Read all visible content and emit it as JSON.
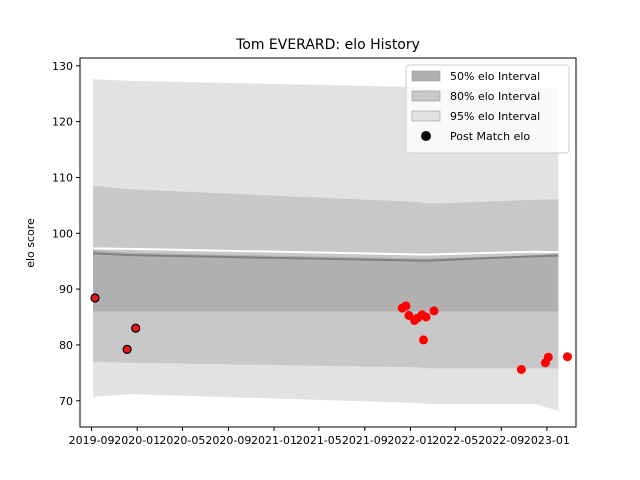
{
  "chart_data": {
    "type": "area",
    "title": "Tom EVERARD: elo History",
    "xlabel": "",
    "ylabel": "elo score",
    "xlim": [
      "2019-08-01",
      "2023-03-20"
    ],
    "ylim": [
      65.3,
      131.4
    ],
    "yticks": [
      70,
      80,
      90,
      100,
      110,
      120,
      130
    ],
    "xticks": [
      "2019-09",
      "2020-01",
      "2020-05",
      "2020-09",
      "2021-01",
      "2021-05",
      "2021-09",
      "2022-01",
      "2022-05",
      "2022-09",
      "2023-01"
    ],
    "grid": false,
    "legend": {
      "position": "top-right",
      "entries": [
        {
          "label": "50% elo Interval",
          "kind": "patch",
          "color": "#b0b0b0"
        },
        {
          "label": "80% elo Interval",
          "kind": "patch",
          "color": "#c8c8c8"
        },
        {
          "label": "95% elo Interval",
          "kind": "patch",
          "color": "#e2e2e2"
        },
        {
          "label": "Post Match elo",
          "kind": "marker",
          "color": "#000000"
        }
      ]
    },
    "colors": {
      "band_50": "#b0b0b0",
      "band_80": "#c8c8c8",
      "band_95": "#e2e2e2",
      "mean_line": "#808080",
      "upper_line": "#ffffff",
      "point_early": "#e8191a",
      "point_late": "#ff0000"
    },
    "bands": {
      "x": [
        "2019-09-05",
        "2019-12-15",
        "2022-01-20",
        "2022-02-20",
        "2022-12-01",
        "2023-02-01"
      ],
      "mean": [
        96.4,
        96.1,
        95.1,
        95.1,
        95.9,
        96.0
      ],
      "p50_low": [
        86.0,
        86.0,
        86.0,
        86.0,
        86.0,
        86.0
      ],
      "p50_high": [
        97.0,
        96.5,
        95.5,
        95.5,
        96.0,
        96.5
      ],
      "p80_low": [
        77.0,
        76.8,
        76.0,
        75.8,
        75.8,
        75.8
      ],
      "p80_high": [
        108.5,
        107.9,
        105.6,
        105.3,
        106.0,
        106.1
      ],
      "p95_low": [
        70.7,
        71.2,
        69.6,
        69.4,
        69.4,
        68.2
      ],
      "p95_high": [
        127.6,
        127.3,
        126.2,
        125.9,
        126.0,
        126.0
      ]
    },
    "upper_line": {
      "x": [
        "2019-09-05",
        "2019-12-15",
        "2022-01-20",
        "2022-02-20",
        "2022-12-01",
        "2023-02-01"
      ],
      "y": [
        97.3,
        97.2,
        96.2,
        96.2,
        96.7,
        96.6
      ]
    },
    "points": [
      {
        "date": "2019-09-10",
        "elo": 88.4,
        "group": "early"
      },
      {
        "date": "2019-12-05",
        "elo": 79.2,
        "group": "early"
      },
      {
        "date": "2019-12-28",
        "elo": 83.0,
        "group": "early"
      },
      {
        "date": "2021-12-10",
        "elo": 86.6,
        "group": "late"
      },
      {
        "date": "2021-12-20",
        "elo": 87.0,
        "group": "late"
      },
      {
        "date": "2021-12-28",
        "elo": 85.3,
        "group": "late"
      },
      {
        "date": "2022-01-12",
        "elo": 84.4,
        "group": "late"
      },
      {
        "date": "2022-01-20",
        "elo": 84.8,
        "group": "late"
      },
      {
        "date": "2022-02-01",
        "elo": 85.4,
        "group": "late"
      },
      {
        "date": "2022-02-05",
        "elo": 80.9,
        "group": "late"
      },
      {
        "date": "2022-02-12",
        "elo": 85.0,
        "group": "late"
      },
      {
        "date": "2022-03-05",
        "elo": 86.1,
        "group": "late"
      },
      {
        "date": "2022-10-25",
        "elo": 75.6,
        "group": "late"
      },
      {
        "date": "2022-12-28",
        "elo": 76.8,
        "group": "late"
      },
      {
        "date": "2023-01-05",
        "elo": 77.8,
        "group": "late"
      },
      {
        "date": "2023-02-25",
        "elo": 77.9,
        "group": "late"
      }
    ]
  }
}
